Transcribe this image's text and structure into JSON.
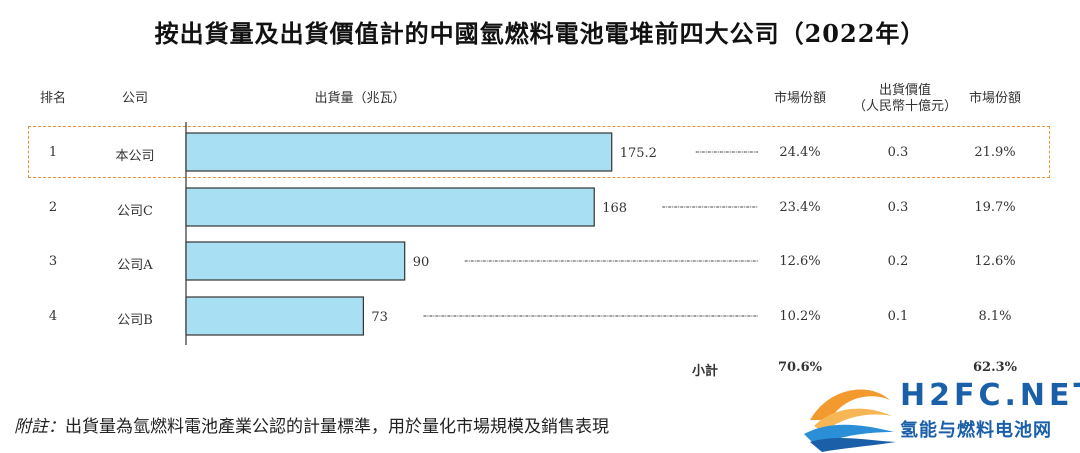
{
  "title": "按出貨量及出貨價值計的中國氫燃料電池電堆前四大公司（2022年）",
  "headers": {
    "rank": "排名",
    "company": "公司",
    "shipment": "出貨量（兆瓦）",
    "share1": "市場份額",
    "value_line1": "出貨價值",
    "value_line2": "（人民幣十億元）",
    "share2": "市場份額"
  },
  "rows": [
    {
      "rank": "1",
      "company": "本公司",
      "share1": "24.4%",
      "value": "0.3",
      "share2": "21.9%"
    },
    {
      "rank": "2",
      "company": "公司C",
      "share1": "23.4%",
      "value": "0.3",
      "share2": "19.7%"
    },
    {
      "rank": "3",
      "company": "公司A",
      "share1": "12.6%",
      "value": "0.2",
      "share2": "12.6%"
    },
    {
      "rank": "4",
      "company": "公司B",
      "share1": "10.2%",
      "value": "0.1",
      "share2": "8.1%"
    }
  ],
  "subtotal": {
    "label": "小計",
    "share1": "70.6%",
    "share2": "62.3%"
  },
  "footnote": {
    "label": "附註：",
    "text": "出貨量為氫燃料電池產業公認的計量標準，用於量化市場規模及銷售表現"
  },
  "logo": {
    "main": "H2FC.NET",
    "sub": "氢能与燃料电池网"
  },
  "chart_data": {
    "type": "bar",
    "orientation": "horizontal",
    "categories": [
      "本公司",
      "公司C",
      "公司A",
      "公司B"
    ],
    "values": [
      175.2,
      168,
      90,
      73
    ],
    "value_labels": [
      "175.2",
      "168",
      "90",
      "73"
    ],
    "xlabel": "出貨量（兆瓦）",
    "highlighted_category": "本公司",
    "colors": {
      "bar_fill": "#a8dff2",
      "bar_stroke": "#333333",
      "highlight_border": "#e8923a",
      "logo_blue": "#1a5fa8",
      "logo_orange": "#f29a2e"
    }
  }
}
